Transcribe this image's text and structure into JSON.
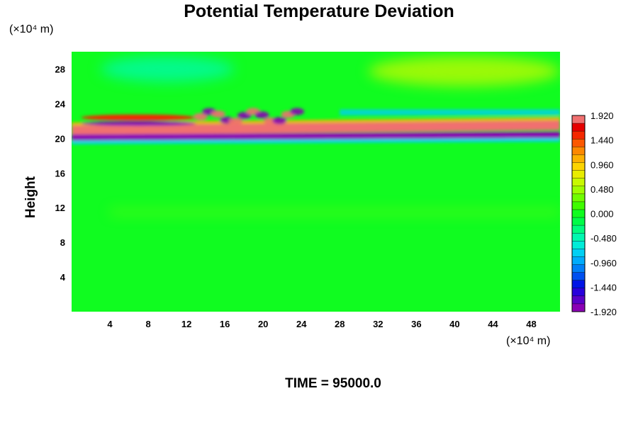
{
  "chart_data": {
    "type": "heatmap",
    "title": "Potential Temperature Deviation",
    "ylabel": "Height",
    "x_unit": "(×10⁴ m)",
    "y_unit": "(×10⁴ m)",
    "annotation": "TIME = 95000.0",
    "x_range": [
      0,
      51
    ],
    "y_range": [
      0,
      30
    ],
    "x_ticks": [
      4,
      8,
      12,
      16,
      20,
      24,
      28,
      32,
      36,
      40,
      44,
      48
    ],
    "y_ticks": [
      4,
      8,
      12,
      16,
      20,
      24,
      28
    ],
    "colorbar": {
      "min": -1.92,
      "max": 1.92,
      "step": 0.16,
      "labels": [
        "1.920",
        "1.440",
        "0.960",
        "0.480",
        "0.000",
        "-0.480",
        "-0.960",
        "-1.440",
        "-1.920"
      ],
      "placement": "right",
      "colors": [
        "#8a00b4",
        "#5a00c8",
        "#2800dc",
        "#0014e6",
        "#0050f0",
        "#0080f8",
        "#00acfc",
        "#00d0f4",
        "#00ecd8",
        "#00f8b0",
        "#00fc80",
        "#00fc48",
        "#10fc20",
        "#40fc00",
        "#70fc00",
        "#a0fc00",
        "#c8f800",
        "#e8ec00",
        "#fcd400",
        "#fcb000",
        "#fc8800",
        "#fc5800",
        "#f42800",
        "#e60000",
        "#f07070"
      ]
    },
    "features": [
      {
        "name": "background",
        "value": 0.0
      },
      {
        "name": "upper-left-cyan-patch",
        "value": -0.45,
        "x_range": [
          3,
          17
        ],
        "y_range": [
          26.5,
          29.5
        ]
      },
      {
        "name": "upper-right-yellow-patch",
        "value": 0.6,
        "x_range": [
          31,
          51
        ],
        "y_range": [
          26,
          29.5
        ]
      },
      {
        "name": "main-warm-band",
        "value": 1.92,
        "x_range": [
          0,
          51
        ],
        "y_center_start": 20.9,
        "y_center_end": 21.5
      },
      {
        "name": "main-cold-band",
        "value": -1.92,
        "x_range": [
          0,
          51
        ],
        "y_center_start": 20.1,
        "y_center_end": 20.4
      },
      {
        "name": "upper-red-band",
        "value": 1.6,
        "x_range": [
          1,
          13
        ],
        "y_center": 22.4
      },
      {
        "name": "wave-train",
        "value": 1.9,
        "x_range": [
          13,
          24
        ],
        "y_range": [
          21.5,
          23.5
        ]
      },
      {
        "name": "cyan-band",
        "value": -0.7,
        "x_range": [
          28,
          51
        ],
        "y_center": 23.0
      },
      {
        "name": "low-yellow-line",
        "value": 0.5,
        "x_range": [
          4,
          51
        ],
        "y_center": 11.5
      }
    ]
  }
}
